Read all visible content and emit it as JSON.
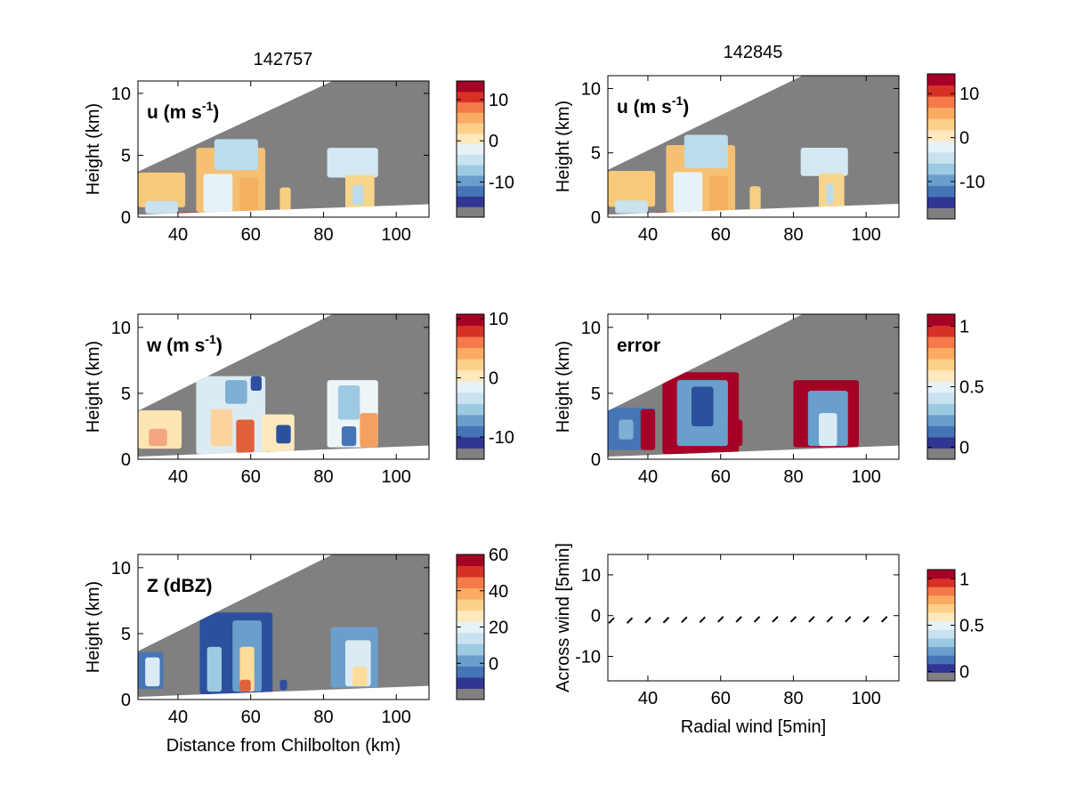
{
  "figure": {
    "col_titles": [
      "142757",
      "142845"
    ]
  },
  "chart_data": [
    {
      "type": "heatmap",
      "panel": "u-left",
      "label": "u (m s",
      "label_sup": "-1",
      "label_close": ")",
      "ylabel": "Height (km)",
      "xlabel": "",
      "xlim": [
        29,
        109
      ],
      "ylim": [
        0,
        11
      ],
      "xticks": [
        40,
        60,
        80,
        100
      ],
      "yticks": [
        0,
        5,
        10
      ],
      "cbar_ticks": [
        {
          "v": 10,
          "t": "10"
        },
        {
          "v": 0,
          "t": "0"
        },
        {
          "v": -10,
          "t": "-10"
        }
      ],
      "cbar_range": [
        -18.5,
        14.5
      ],
      "cells": [
        {
          "x0": 29,
          "x1": 42,
          "y0": 0.8,
          "y1": 3.6,
          "c": "#f7c97a"
        },
        {
          "x0": 31,
          "x1": 40,
          "y0": 0.3,
          "y1": 1.3,
          "c": "#c8e2ef"
        },
        {
          "x0": 45,
          "x1": 64,
          "y0": 0.4,
          "y1": 5.6,
          "c": "#f5c072"
        },
        {
          "x0": 50,
          "x1": 62,
          "y0": 3.8,
          "y1": 6.3,
          "c": "#bcdcec"
        },
        {
          "x0": 47,
          "x1": 55,
          "y0": 0.4,
          "y1": 3.5,
          "c": "#e7f2f7"
        },
        {
          "x0": 57,
          "x1": 62,
          "y0": 0.4,
          "y1": 3.2,
          "c": "#f3b060"
        },
        {
          "x0": 68,
          "x1": 71,
          "y0": 0.5,
          "y1": 2.4,
          "c": "#f7cf82"
        },
        {
          "x0": 81,
          "x1": 95,
          "y0": 3.2,
          "y1": 5.6,
          "c": "#d4e8f2"
        },
        {
          "x0": 86,
          "x1": 94,
          "y0": 0.6,
          "y1": 3.4,
          "c": "#f8d58c"
        },
        {
          "x0": 88,
          "x1": 91,
          "y0": 1.0,
          "y1": 2.6,
          "c": "#bcdcec"
        },
        {
          "x0": 40,
          "x1": 46,
          "y0": 0.1,
          "y1": 0.4,
          "c": "#d73027"
        }
      ]
    },
    {
      "type": "heatmap",
      "panel": "u-right",
      "label": "u (m s",
      "label_sup": "-1",
      "label_close": ")",
      "ylabel": "Height (km)",
      "xlabel": "",
      "xlim": [
        29,
        109
      ],
      "ylim": [
        0,
        11
      ],
      "xticks": [
        40,
        60,
        80,
        100
      ],
      "yticks": [
        0,
        5,
        10
      ],
      "cbar_ticks": [
        {
          "v": 10,
          "t": "10"
        },
        {
          "v": 0,
          "t": "0"
        },
        {
          "v": -10,
          "t": "-10"
        }
      ],
      "cbar_range": [
        -18.5,
        14.5
      ],
      "cells": [
        {
          "x0": 29,
          "x1": 42,
          "y0": 0.8,
          "y1": 3.6,
          "c": "#f7c97a"
        },
        {
          "x0": 31,
          "x1": 40,
          "y0": 0.3,
          "y1": 1.3,
          "c": "#c8e2ef"
        },
        {
          "x0": 45,
          "x1": 64,
          "y0": 0.4,
          "y1": 5.6,
          "c": "#f5c072"
        },
        {
          "x0": 50,
          "x1": 62,
          "y0": 3.8,
          "y1": 6.4,
          "c": "#bcdcec"
        },
        {
          "x0": 47,
          "x1": 55,
          "y0": 0.4,
          "y1": 3.5,
          "c": "#e7f2f7"
        },
        {
          "x0": 57,
          "x1": 62,
          "y0": 0.4,
          "y1": 3.2,
          "c": "#f3b060"
        },
        {
          "x0": 68,
          "x1": 71,
          "y0": 0.5,
          "y1": 2.4,
          "c": "#f7cf82"
        },
        {
          "x0": 82,
          "x1": 95,
          "y0": 3.2,
          "y1": 5.4,
          "c": "#d4e8f2"
        },
        {
          "x0": 87,
          "x1": 94,
          "y0": 0.6,
          "y1": 3.4,
          "c": "#f8d58c"
        },
        {
          "x0": 89,
          "x1": 91,
          "y0": 1.0,
          "y1": 2.6,
          "c": "#bcdcec"
        },
        {
          "x0": 42,
          "x1": 45,
          "y0": 0.1,
          "y1": 0.4,
          "c": "#d73027"
        }
      ]
    },
    {
      "type": "heatmap",
      "panel": "w-left",
      "label": "w (m s",
      "label_sup": "-1",
      "label_close": ")",
      "ylabel": "Height (km)",
      "xlabel": "",
      "xlim": [
        29,
        109
      ],
      "ylim": [
        0,
        11
      ],
      "xticks": [
        40,
        60,
        80,
        100
      ],
      "yticks": [
        0,
        5,
        10
      ],
      "cbar_ticks": [
        {
          "v": 10,
          "t": "10"
        },
        {
          "v": 0,
          "t": "0"
        },
        {
          "v": -10,
          "t": "-10"
        }
      ],
      "cbar_range": [
        -13.75,
        10.75
      ],
      "cells": [
        {
          "x0": 29,
          "x1": 41,
          "y0": 0.8,
          "y1": 3.7,
          "c": "#fbe5b0"
        },
        {
          "x0": 32,
          "x1": 37,
          "y0": 1.0,
          "y1": 2.3,
          "c": "#f4a582"
        },
        {
          "x0": 45,
          "x1": 64,
          "y0": 0.4,
          "y1": 6.3,
          "c": "#dcebf3"
        },
        {
          "x0": 49,
          "x1": 55,
          "y0": 1.0,
          "y1": 3.8,
          "c": "#fdd49e"
        },
        {
          "x0": 53,
          "x1": 59,
          "y0": 4.2,
          "y1": 6.0,
          "c": "#7fb0d3"
        },
        {
          "x0": 56,
          "x1": 61,
          "y0": 0.5,
          "y1": 3.0,
          "c": "#e0603a"
        },
        {
          "x0": 60,
          "x1": 63,
          "y0": 5.2,
          "y1": 6.3,
          "c": "#2c4f9e"
        },
        {
          "x0": 63,
          "x1": 72,
          "y0": 0.6,
          "y1": 3.4,
          "c": "#fee9be"
        },
        {
          "x0": 67,
          "x1": 71,
          "y0": 1.2,
          "y1": 2.6,
          "c": "#2c4f9e"
        },
        {
          "x0": 81,
          "x1": 95,
          "y0": 0.9,
          "y1": 6.0,
          "c": "#eef5f9"
        },
        {
          "x0": 84,
          "x1": 90,
          "y0": 3.0,
          "y1": 5.6,
          "c": "#9ec9e2"
        },
        {
          "x0": 90,
          "x1": 95,
          "y0": 0.9,
          "y1": 3.5,
          "c": "#f4a060"
        },
        {
          "x0": 85,
          "x1": 89,
          "y0": 1.0,
          "y1": 2.5,
          "c": "#4575b4"
        }
      ]
    },
    {
      "type": "heatmap",
      "panel": "error-right",
      "label": "error",
      "label_sup": "",
      "label_close": "",
      "ylabel": "Height (km)",
      "xlabel": "",
      "xlim": [
        29,
        109
      ],
      "ylim": [
        0,
        11
      ],
      "xticks": [
        40,
        60,
        80,
        100
      ],
      "yticks": [
        0,
        5,
        10
      ],
      "cbar_ticks": [
        {
          "v": 1,
          "t": "1"
        },
        {
          "v": 0.5,
          "t": "0.5"
        },
        {
          "v": 0,
          "t": "0"
        }
      ],
      "cbar_range": [
        -0.1,
        1.1
      ],
      "cells": [
        {
          "x0": 29,
          "x1": 42,
          "y0": 0.7,
          "y1": 3.9,
          "c": "#4575b4"
        },
        {
          "x0": 32,
          "x1": 36,
          "y0": 1.5,
          "y1": 3.0,
          "c": "#7fb0d3"
        },
        {
          "x0": 38,
          "x1": 42,
          "y0": 0.7,
          "y1": 3.8,
          "c": "#a50026"
        },
        {
          "x0": 44,
          "x1": 65,
          "y0": 0.4,
          "y1": 6.6,
          "c": "#a50026"
        },
        {
          "x0": 48,
          "x1": 62,
          "y0": 1.0,
          "y1": 6.0,
          "c": "#6a9fcb"
        },
        {
          "x0": 52,
          "x1": 58,
          "y0": 2.5,
          "y1": 5.5,
          "c": "#2c4f9e"
        },
        {
          "x0": 62,
          "x1": 66,
          "y0": 1.0,
          "y1": 3.0,
          "c": "#a50026"
        },
        {
          "x0": 80,
          "x1": 98,
          "y0": 0.9,
          "y1": 6.0,
          "c": "#a50026"
        },
        {
          "x0": 84,
          "x1": 95,
          "y0": 1.0,
          "y1": 5.2,
          "c": "#6a9fcb"
        },
        {
          "x0": 87,
          "x1": 92,
          "y0": 1.0,
          "y1": 3.5,
          "c": "#dcebf3"
        }
      ]
    },
    {
      "type": "heatmap",
      "panel": "z-left",
      "label": "Z (dBZ)",
      "label_sup": "",
      "label_close": "",
      "ylabel": "Height (km)",
      "xlabel": "Distance from Chilbolton (km)",
      "xlim": [
        29,
        109
      ],
      "ylim": [
        0,
        11
      ],
      "xticks": [
        40,
        60,
        80,
        100
      ],
      "yticks": [
        0,
        5,
        10
      ],
      "cbar_ticks": [
        {
          "v": 60,
          "t": "60"
        },
        {
          "v": 40,
          "t": "40"
        },
        {
          "v": 20,
          "t": "20"
        },
        {
          "v": 0,
          "t": "0"
        }
      ],
      "cbar_range": [
        -20,
        60
      ],
      "cells": [
        {
          "x0": 29,
          "x1": 36,
          "y0": 0.8,
          "y1": 3.6,
          "c": "#4575b4"
        },
        {
          "x0": 31,
          "x1": 35,
          "y0": 1.0,
          "y1": 3.2,
          "c": "#dcebf3"
        },
        {
          "x0": 46,
          "x1": 66,
          "y0": 0.4,
          "y1": 6.6,
          "c": "#2c4f9e"
        },
        {
          "x0": 48,
          "x1": 52,
          "y0": 0.6,
          "y1": 4.0,
          "c": "#9ec9e2"
        },
        {
          "x0": 55,
          "x1": 63,
          "y0": 0.6,
          "y1": 6.0,
          "c": "#6a9fcb"
        },
        {
          "x0": 57,
          "x1": 61,
          "y0": 0.6,
          "y1": 4.0,
          "c": "#fddb9a"
        },
        {
          "x0": 57,
          "x1": 60,
          "y0": 0.6,
          "y1": 1.5,
          "c": "#e0603a"
        },
        {
          "x0": 68,
          "x1": 70,
          "y0": 0.7,
          "y1": 1.5,
          "c": "#2c4f9e"
        },
        {
          "x0": 82,
          "x1": 95,
          "y0": 0.9,
          "y1": 5.5,
          "c": "#6a9fcb"
        },
        {
          "x0": 86,
          "x1": 93,
          "y0": 1.0,
          "y1": 4.5,
          "c": "#dcebf3"
        },
        {
          "x0": 88,
          "x1": 92,
          "y0": 1.0,
          "y1": 2.5,
          "c": "#fddb9a"
        }
      ]
    },
    {
      "type": "scatter",
      "panel": "wind-right",
      "label": "",
      "ylabel": "Across wind [5min]",
      "xlabel": "Radial wind [5min]",
      "xlim": [
        29,
        109
      ],
      "ylim": [
        -16,
        15
      ],
      "xticks": [
        40,
        60,
        80,
        100
      ],
      "yticks": [
        10,
        0,
        -10
      ],
      "cbar_ticks": [
        {
          "v": 1,
          "t": "1"
        },
        {
          "v": 0.5,
          "t": "0.5"
        },
        {
          "v": 0,
          "t": "0"
        }
      ],
      "cbar_range": [
        -0.1,
        1.1
      ],
      "points": [
        {
          "x": 30,
          "y": -1.2
        },
        {
          "x": 35,
          "y": -1.2
        },
        {
          "x": 40,
          "y": -1.1
        },
        {
          "x": 45,
          "y": -1.1
        },
        {
          "x": 50,
          "y": -1.0
        },
        {
          "x": 55,
          "y": -1.0
        },
        {
          "x": 60,
          "y": -0.9
        },
        {
          "x": 65,
          "y": -0.9
        },
        {
          "x": 70,
          "y": -0.9
        },
        {
          "x": 75,
          "y": -0.9
        },
        {
          "x": 80,
          "y": -0.9
        },
        {
          "x": 85,
          "y": -0.9
        },
        {
          "x": 90,
          "y": -0.9
        },
        {
          "x": 95,
          "y": -0.9
        },
        {
          "x": 100,
          "y": -0.9
        },
        {
          "x": 105,
          "y": -0.9
        }
      ]
    }
  ],
  "colormap": [
    "#313695",
    "#4575b4",
    "#6a9fcb",
    "#9ec9e2",
    "#c8e2ef",
    "#e7f2f7",
    "#fee9be",
    "#fdd08a",
    "#fcab63",
    "#f47a4a",
    "#d73027",
    "#a50026"
  ],
  "missing_color": "#808080",
  "background_color": "#ffffff"
}
